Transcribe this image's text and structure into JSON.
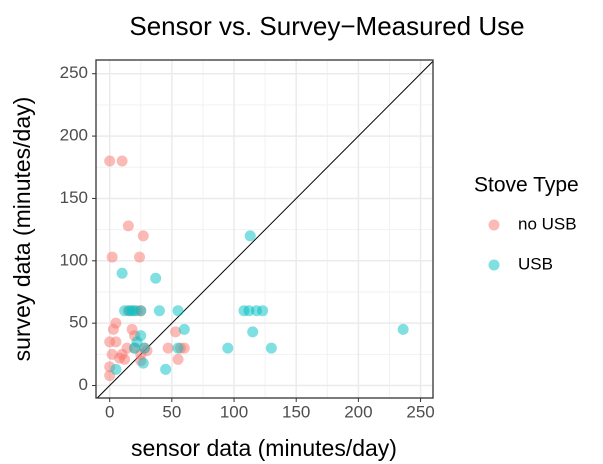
{
  "chart_data": {
    "type": "scatter",
    "title": "Sensor vs. Survey−Measured Use",
    "x_label": "sensor data (minutes/day)",
    "y_label": "survey data (minutes/day)",
    "legend_title": "Stove Type",
    "legend_position": "right",
    "grid": true,
    "identity_line": true,
    "xlim": [
      -11,
      260
    ],
    "ylim": [
      -10,
      261
    ],
    "xticks": [
      0,
      50,
      100,
      150,
      200,
      250
    ],
    "yticks": [
      0,
      50,
      100,
      150,
      200,
      250
    ],
    "series": [
      {
        "name": "no USB",
        "color": "#F8766D",
        "x": [
          0,
          10,
          15,
          27,
          2,
          24,
          0,
          2,
          3,
          5,
          5,
          0,
          0,
          8,
          10,
          14,
          18,
          20,
          22,
          25,
          28,
          25,
          30,
          47,
          53,
          55,
          57,
          60,
          25,
          15,
          20,
          12
        ],
        "values": [
          180,
          180,
          128,
          120,
          103,
          103,
          35,
          25,
          45,
          50,
          35,
          15,
          8,
          22,
          25,
          30,
          45,
          40,
          60,
          60,
          30,
          25,
          28,
          30,
          43,
          21,
          30,
          30,
          20,
          60,
          30,
          21
        ]
      },
      {
        "name": "USB",
        "color": "#00BFC4",
        "x": [
          10,
          37,
          12,
          16,
          20,
          25,
          40,
          55,
          60,
          55,
          5,
          22,
          25,
          27,
          20,
          45,
          95,
          108,
          112,
          118,
          123,
          113,
          115,
          130,
          236,
          18,
          28
        ],
        "values": [
          90,
          86,
          60,
          60,
          60,
          60,
          60,
          60,
          45,
          30,
          13,
          35,
          40,
          18,
          30,
          13,
          30,
          60,
          60,
          60,
          60,
          120,
          43,
          30,
          45,
          60,
          30
        ]
      }
    ]
  }
}
